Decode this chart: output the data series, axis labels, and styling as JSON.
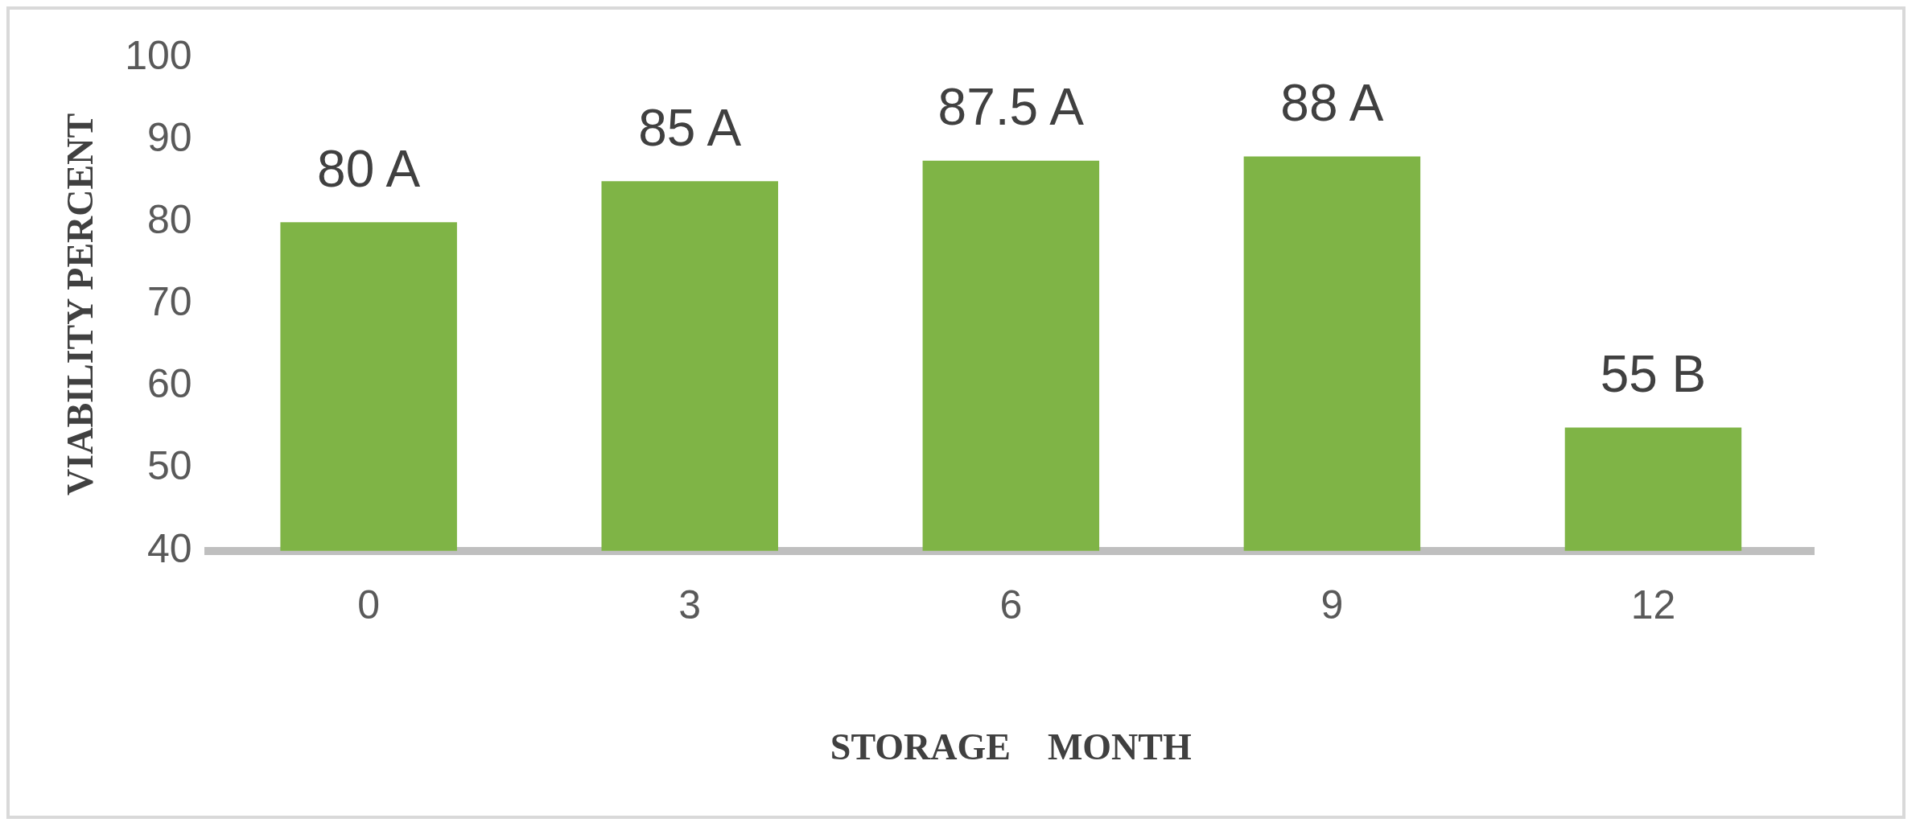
{
  "chart_data": {
    "type": "bar",
    "xlabel": "STORAGE    MONTH",
    "ylabel": "VIABILITY PERCENT",
    "categories": [
      "0",
      "3",
      "6",
      "9",
      "12"
    ],
    "values": [
      80,
      85,
      87.5,
      88,
      55
    ],
    "value_labels": [
      "80 A",
      "85 A",
      "87.5 A",
      "88 A",
      "55 B"
    ],
    "color": "#7fb446",
    "ylim": [
      40,
      100
    ],
    "yticks": [
      40,
      50,
      60,
      70,
      80,
      90,
      100
    ],
    "grid": false,
    "legend": false
  }
}
